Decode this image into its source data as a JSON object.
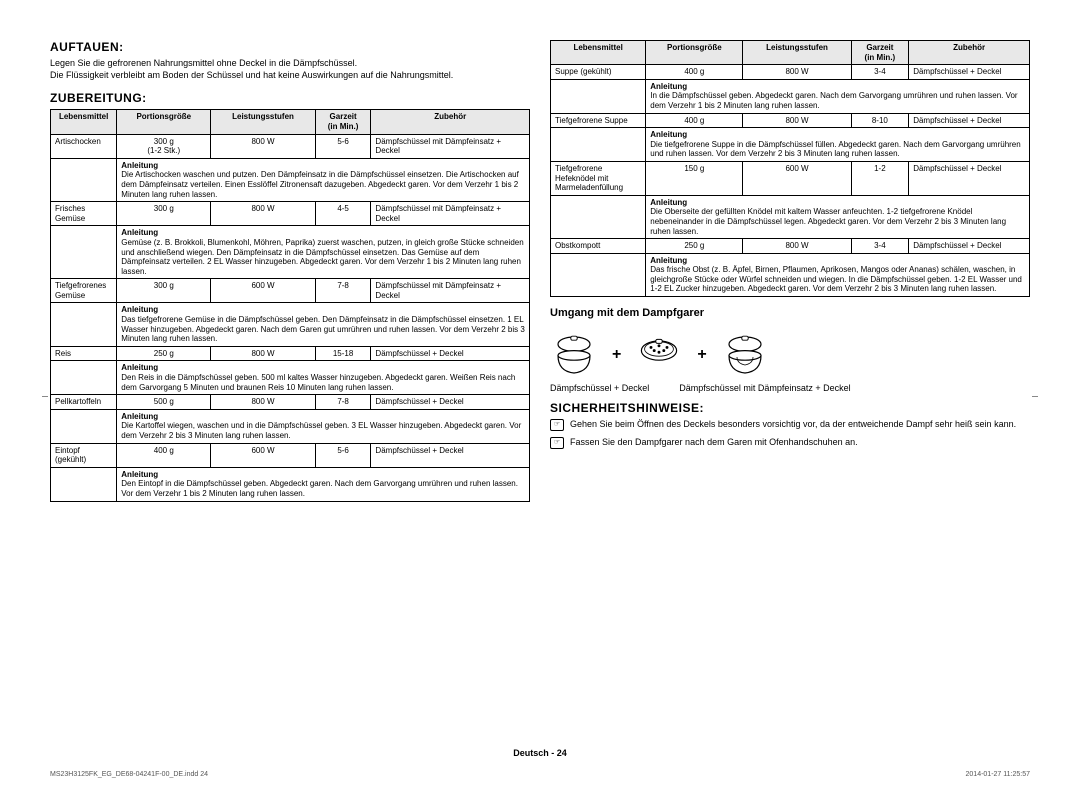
{
  "headings": {
    "auftauen": "AUFTAUEN:",
    "zubereitung": "ZUBEREITUNG:",
    "umgang": "Umgang mit dem Dampfgarer",
    "sicherheit": "SICHERHEITSHINWEISE:"
  },
  "intro_auftauen": "Legen Sie die gefrorenen Nahrungsmittel ohne Deckel in die Dämpfschüssel.\nDie Flüssigkeit verbleibt am Boden der Schüssel und hat keine Auswirkungen auf die Nahrungsmittel.",
  "table_headers": {
    "lebensmittel": "Lebensmittel",
    "portion": "Portionsgröße",
    "leistung": "Leistungsstufen",
    "garzeit": "Garzeit (in Min.)",
    "garzeit_top": "Garzeit",
    "garzeit_bottom": "(in Min.)",
    "zubehoer": "Zubehör",
    "anleitung": "Anleitung"
  },
  "table1_rows": [
    {
      "name": "Artischocken",
      "portion": "300 g\n(1-2 Stk.)",
      "power": "800 W",
      "time": "5-6",
      "acc": "Dämpfschüssel mit Dämpfeinsatz + Deckel",
      "anl": "Die Artischocken waschen und putzen. Den Dämpfeinsatz in die Dämpfschüssel einsetzen. Die Artischocken auf dem Dämpfeinsatz verteilen. Einen Esslöffel Zitronensaft dazugeben. Abgedeckt garen. Vor dem Verzehr 1 bis 2 Minuten lang ruhen lassen."
    },
    {
      "name": "Frisches Gemüse",
      "portion": "300 g",
      "power": "800 W",
      "time": "4-5",
      "acc": "Dämpfschüssel mit Dämpfeinsatz + Deckel",
      "anl": "Gemüse (z. B. Brokkoli, Blumenkohl, Möhren, Paprika) zuerst waschen, putzen, in gleich große Stücke schneiden und anschließend wiegen. Den Dämpfeinsatz in die Dämpfschüssel einsetzen. Das Gemüse auf dem Dämpfeinsatz verteilen. 2 EL Wasser hinzugeben. Abgedeckt garen. Vor dem Verzehr 1 bis 2 Minuten lang ruhen lassen."
    },
    {
      "name": "Tiefgefrorenes Gemüse",
      "portion": "300 g",
      "power": "600 W",
      "time": "7-8",
      "acc": "Dämpfschüssel mit Dämpfeinsatz + Deckel",
      "anl": "Das tiefgefrorene Gemüse in die Dämpfschüssel geben. Den Dämpfeinsatz in die Dämpfschüssel einsetzen. 1 EL Wasser hinzugeben. Abgedeckt garen. Nach dem Garen gut umrühren und ruhen lassen. Vor dem Verzehr 2 bis 3 Minuten lang ruhen lassen."
    },
    {
      "name": "Reis",
      "portion": "250 g",
      "power": "800 W",
      "time": "15-18",
      "acc": "Dämpfschüssel + Deckel",
      "anl": "Den Reis in die Dämpfschüssel geben. 500 ml kaltes Wasser hinzugeben. Abgedeckt garen. Weißen Reis nach dem Garvorgang 5 Minuten und braunen Reis 10 Minuten lang ruhen lassen."
    },
    {
      "name": "Pellkartoffeln",
      "portion": "500 g",
      "power": "800 W",
      "time": "7-8",
      "acc": "Dämpfschüssel + Deckel",
      "anl": "Die Kartoffel wiegen, waschen und in die Dämpfschüssel geben. 3 EL Wasser hinzugeben. Abgedeckt garen. Vor dem Verzehr 2 bis 3 Minuten lang ruhen lassen."
    },
    {
      "name": "Eintopf (gekühlt)",
      "portion": "400 g",
      "power": "600 W",
      "time": "5-6",
      "acc": "Dämpfschüssel + Deckel",
      "anl": "Den Eintopf in die Dämpfschüssel geben. Abgedeckt garen. Nach dem Garvorgang umrühren und ruhen lassen. Vor dem Verzehr 1 bis 2 Minuten lang ruhen lassen."
    }
  ],
  "table2_rows": [
    {
      "name": "Suppe (gekühlt)",
      "portion": "400 g",
      "power": "800 W",
      "time": "3-4",
      "acc": "Dämpfschüssel + Deckel",
      "anl": "In die Dämpfschüssel geben. Abgedeckt garen. Nach dem Garvorgang umrühren und ruhen lassen. Vor dem Verzehr 1 bis 2 Minuten lang ruhen lassen."
    },
    {
      "name": "Tiefgefrorene Suppe",
      "portion": "400 g",
      "power": "800 W",
      "time": "8-10",
      "acc": "Dämpfschüssel + Deckel",
      "anl": "Die tiefgefrorene Suppe in die Dämpfschüssel füllen. Abgedeckt garen. Nach dem Garvorgang umrühren und ruhen lassen. Vor dem Verzehr 2 bis 3 Minuten lang ruhen lassen."
    },
    {
      "name": "Tiefgefrorene Hefeknödel mit Marmeladenfüllung",
      "portion": "150 g",
      "power": "600 W",
      "time": "1-2",
      "acc": "Dämpfschüssel + Deckel",
      "anl": "Die Oberseite der gefüllten Knödel mit kaltem Wasser anfeuchten. 1-2 tiefgefrorene Knödel nebeneinander in die Dämpfschüssel legen.\nAbgedeckt garen. Vor dem Verzehr 2 bis 3 Minuten lang ruhen lassen."
    },
    {
      "name": "Obstkompott",
      "portion": "250 g",
      "power": "800 W",
      "time": "3-4",
      "acc": "Dämpfschüssel + Deckel",
      "anl": "Das frische Obst (z. B. Äpfel, Birnen, Pflaumen, Aprikosen, Mangos oder Ananas) schälen, waschen, in gleichgroße Stücke oder Würfel schneiden und wiegen. In die Dämpfschüssel geben. 1-2 EL Wasser und 1-2 EL Zucker hinzugeben. Abgedeckt garen. Vor dem Verzehr 2 bis 3 Minuten lang ruhen lassen."
    }
  ],
  "steamer_labels": {
    "left": "Dämpfschüssel + Deckel",
    "right": "Dämpfschüssel mit Dämpfeinsatz + Deckel"
  },
  "safety": [
    "Gehen Sie beim Öffnen des Deckels besonders vorsichtig vor, da der entweichende Dampf sehr heiß sein kann.",
    "Fassen Sie den Dampfgarer nach dem Garen mit Ofenhandschuhen an."
  ],
  "footer": {
    "lang": "Deutsch - 24",
    "file": "MS23H3125FK_EG_DE68-04241F-00_DE.indd   24",
    "date": "2014-01-27    11:25:57"
  },
  "svg": {
    "bowl_color": "#ffffff",
    "stroke": "#000000"
  }
}
